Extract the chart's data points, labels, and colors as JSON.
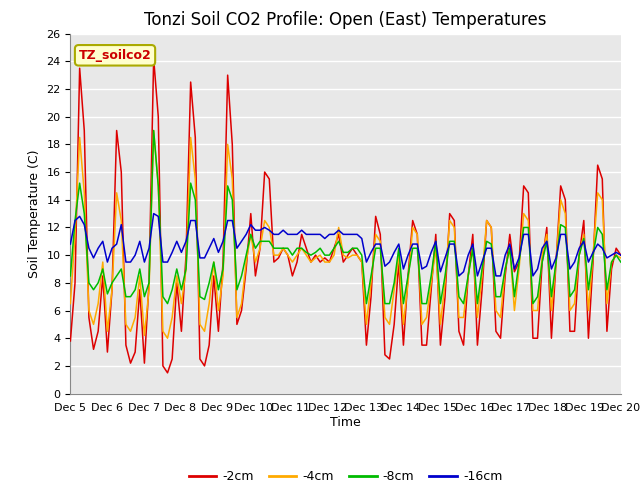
{
  "title": "Tonzi Soil CO2 Profile: Open (East) Temperatures",
  "xlabel": "Time",
  "ylabel": "Soil Temperature (C)",
  "ylim": [
    0,
    26
  ],
  "yticks": [
    0,
    2,
    4,
    6,
    8,
    10,
    12,
    14,
    16,
    18,
    20,
    22,
    24,
    26
  ],
  "xtick_labels": [
    "Dec 5",
    "Dec 6",
    "Dec 7",
    "Dec 8",
    "Dec 9",
    "Dec 10",
    "Dec 11",
    "Dec 12",
    "Dec 13",
    "Dec 14",
    "Dec 15",
    "Dec 16",
    "Dec 17",
    "Dec 18",
    "Dec 19",
    "Dec 20"
  ],
  "legend_label": "TZ_soilco2",
  "legend_bg": "#ffffcc",
  "legend_border": "#aaaa00",
  "series_labels": [
    "-2cm",
    "-4cm",
    "-8cm",
    "-16cm"
  ],
  "series_colors": [
    "#dd0000",
    "#ffaa00",
    "#00bb00",
    "#0000cc"
  ],
  "background_color": "#e8e8e8",
  "grid_color": "#ffffff",
  "title_fontsize": 12,
  "axis_fontsize": 9,
  "tick_fontsize": 8,
  "red": [
    3.8,
    8.0,
    23.5,
    19.0,
    5.5,
    3.2,
    4.5,
    8.5,
    3.0,
    7.5,
    19.0,
    16.0,
    3.5,
    2.2,
    3.0,
    7.5,
    2.2,
    8.0,
    24.2,
    20.0,
    2.0,
    1.5,
    2.5,
    8.0,
    4.5,
    10.0,
    22.5,
    18.5,
    2.5,
    2.0,
    3.5,
    8.5,
    4.5,
    9.5,
    23.0,
    18.0,
    5.0,
    6.0,
    9.0,
    13.0,
    8.5,
    10.5,
    16.0,
    15.5,
    9.5,
    9.8,
    10.5,
    10.0,
    8.5,
    9.5,
    11.5,
    10.5,
    9.5,
    10.0,
    9.5,
    9.8,
    9.5,
    10.5,
    11.5,
    9.5,
    10.0,
    10.5,
    10.0,
    9.5,
    3.5,
    7.0,
    12.8,
    11.5,
    2.8,
    2.5,
    5.0,
    9.5,
    3.5,
    8.5,
    12.5,
    11.5,
    3.5,
    3.5,
    7.5,
    11.5,
    3.5,
    7.0,
    13.0,
    12.5,
    4.5,
    3.5,
    8.5,
    11.5,
    3.5,
    7.5,
    12.5,
    12.0,
    4.5,
    4.0,
    8.5,
    11.5,
    8.8,
    9.5,
    15.0,
    14.5,
    4.0,
    4.0,
    9.5,
    12.0,
    4.0,
    9.5,
    15.0,
    14.0,
    4.5,
    4.5,
    10.0,
    12.5,
    4.0,
    9.5,
    16.5,
    15.5,
    4.5,
    9.0,
    10.5,
    10.0
  ],
  "orange": [
    6.5,
    11.5,
    18.5,
    14.5,
    6.0,
    5.0,
    6.5,
    9.5,
    4.5,
    7.5,
    14.5,
    12.5,
    5.0,
    4.5,
    5.5,
    8.5,
    4.2,
    7.5,
    19.0,
    15.0,
    4.5,
    4.0,
    5.5,
    8.5,
    6.5,
    9.0,
    18.5,
    15.5,
    5.0,
    4.5,
    6.5,
    9.5,
    6.0,
    8.5,
    18.0,
    15.5,
    5.5,
    6.5,
    9.5,
    11.5,
    9.5,
    10.5,
    12.5,
    12.0,
    10.0,
    10.0,
    10.5,
    10.0,
    9.5,
    10.0,
    10.5,
    10.0,
    9.5,
    9.8,
    10.0,
    9.5,
    9.5,
    10.0,
    12.0,
    10.0,
    9.8,
    10.0,
    10.0,
    9.5,
    5.0,
    8.0,
    11.5,
    11.0,
    5.5,
    5.0,
    7.5,
    10.0,
    5.0,
    8.0,
    12.0,
    11.5,
    5.0,
    5.5,
    8.0,
    10.5,
    5.0,
    8.0,
    12.5,
    12.0,
    5.5,
    5.5,
    8.5,
    10.5,
    5.5,
    8.5,
    12.5,
    12.0,
    6.0,
    5.5,
    9.0,
    10.5,
    6.0,
    9.0,
    13.0,
    12.5,
    6.0,
    6.0,
    10.0,
    11.5,
    6.0,
    9.5,
    14.0,
    13.0,
    6.0,
    6.5,
    10.0,
    11.5,
    6.0,
    10.0,
    14.5,
    14.0,
    6.5,
    9.5,
    10.0,
    9.8
  ],
  "green": [
    8.5,
    12.5,
    15.2,
    13.0,
    8.0,
    7.5,
    8.0,
    9.0,
    7.2,
    8.0,
    8.5,
    9.0,
    7.0,
    7.0,
    7.5,
    9.0,
    7.0,
    8.0,
    19.0,
    15.0,
    7.0,
    6.5,
    7.5,
    9.0,
    7.5,
    9.0,
    15.2,
    14.0,
    7.0,
    6.8,
    8.0,
    9.5,
    7.5,
    9.0,
    15.0,
    14.0,
    7.5,
    8.5,
    10.0,
    11.5,
    10.5,
    11.0,
    11.0,
    11.0,
    10.5,
    10.5,
    10.5,
    10.5,
    10.0,
    10.5,
    10.5,
    10.2,
    10.0,
    10.2,
    10.5,
    10.0,
    10.0,
    10.5,
    11.0,
    10.2,
    10.2,
    10.5,
    10.5,
    10.0,
    6.5,
    8.5,
    10.5,
    10.5,
    6.5,
    6.5,
    8.0,
    10.5,
    6.5,
    8.5,
    10.5,
    10.5,
    6.5,
    6.5,
    8.5,
    11.0,
    6.5,
    8.5,
    11.0,
    11.0,
    7.0,
    6.5,
    8.5,
    10.5,
    6.5,
    9.0,
    11.0,
    10.8,
    7.0,
    7.0,
    9.0,
    10.5,
    7.0,
    9.5,
    12.0,
    12.0,
    6.5,
    7.0,
    9.5,
    11.0,
    7.0,
    9.5,
    12.2,
    12.0,
    7.0,
    7.5,
    10.0,
    11.2,
    7.5,
    10.0,
    12.0,
    11.5,
    7.5,
    9.5,
    10.0,
    9.5
  ],
  "blue": [
    10.8,
    12.5,
    12.8,
    12.2,
    10.5,
    9.8,
    10.5,
    11.0,
    9.5,
    10.5,
    10.8,
    12.2,
    9.5,
    9.5,
    10.0,
    11.0,
    9.5,
    10.5,
    13.0,
    12.8,
    9.5,
    9.5,
    10.2,
    11.0,
    10.2,
    11.0,
    12.5,
    12.5,
    9.8,
    9.8,
    10.5,
    11.2,
    10.2,
    11.0,
    12.5,
    12.5,
    10.5,
    11.0,
    11.5,
    12.2,
    11.8,
    11.8,
    12.0,
    11.8,
    11.5,
    11.5,
    11.8,
    11.5,
    11.5,
    11.5,
    11.8,
    11.5,
    11.5,
    11.5,
    11.5,
    11.2,
    11.5,
    11.5,
    11.8,
    11.5,
    11.5,
    11.5,
    11.5,
    11.2,
    9.5,
    10.2,
    10.8,
    10.8,
    9.2,
    9.5,
    10.2,
    10.8,
    9.0,
    10.0,
    10.8,
    10.8,
    9.0,
    9.2,
    10.2,
    11.0,
    8.8,
    9.8,
    10.8,
    10.8,
    8.5,
    8.8,
    10.0,
    10.8,
    8.5,
    9.5,
    10.5,
    10.5,
    8.5,
    8.5,
    10.0,
    10.8,
    9.0,
    9.8,
    11.5,
    11.5,
    8.5,
    9.0,
    10.5,
    11.0,
    9.0,
    9.8,
    11.5,
    11.5,
    9.0,
    9.5,
    10.5,
    11.0,
    9.5,
    10.2,
    10.8,
    10.5,
    9.8,
    10.0,
    10.2,
    10.0
  ]
}
